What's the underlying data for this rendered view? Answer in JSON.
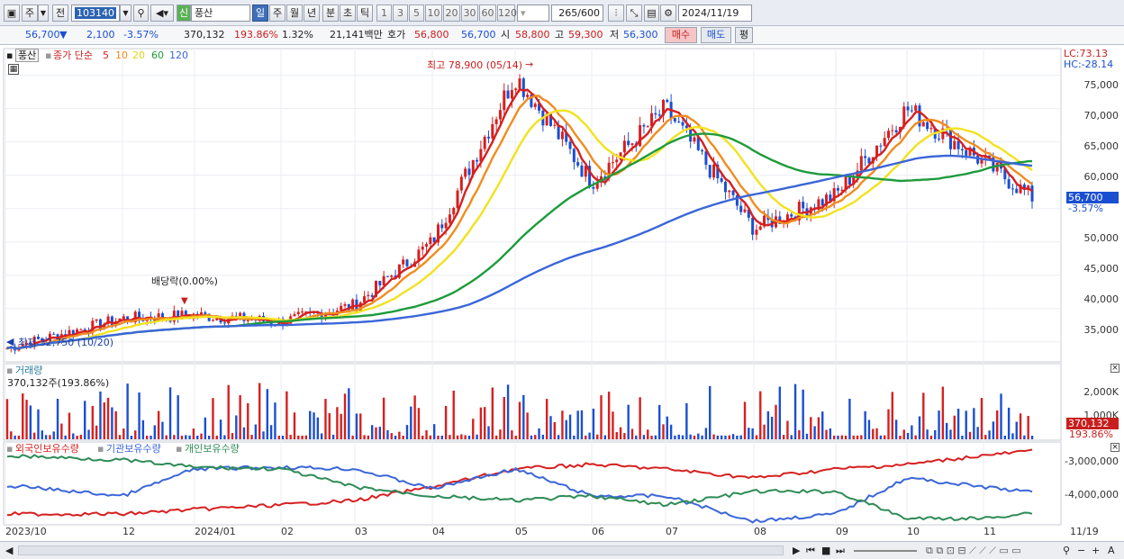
{
  "toolbar": {
    "type_label": "주",
    "prev_label": "전",
    "code": "103140",
    "name": "풍산",
    "new_label": "신",
    "periods": [
      "일",
      "주",
      "월",
      "년",
      "분",
      "초",
      "틱"
    ],
    "selected_period": "일",
    "numbers": [
      "1",
      "3",
      "5",
      "10",
      "20",
      "30",
      "60",
      "120"
    ],
    "count": "265",
    "count_total": "/600",
    "date": "2024/11/19"
  },
  "quote": {
    "price": "56,700",
    "change": "2,100",
    "rate": "-3.57%",
    "volume": "370,132",
    "volume_rate": "193.86%",
    "turnover": "1.32%",
    "amount": "21,141백만",
    "ask_label": "호가",
    "ask1": "56,800",
    "ask2": "56,700",
    "open_label": "시",
    "open": "58,800",
    "high_label": "고",
    "high": "59,300",
    "low_label": "저",
    "low": "56,300",
    "buy": "매수",
    "sell": "매도",
    "avg": "평"
  },
  "price_panel": {
    "stock": "풍산",
    "ma_title": "종가 단순",
    "ma_periods": [
      "5",
      "10",
      "20",
      "60",
      "120"
    ],
    "ma_colors": [
      "#d62020",
      "#f08c1e",
      "#f2e21e",
      "#1e9b3c",
      "#3a66d8"
    ],
    "high_note": "최고 78,900 (05/14)",
    "low_note": "최저 32,750 (10/20)",
    "dividend_note": "배당락(0.00%)",
    "lc": "LC:73.13",
    "hc": "HC:-28.14",
    "last_price": "56,700",
    "last_rate": "-3.57%",
    "y_ticks": [
      "75,000",
      "70,000",
      "65,000",
      "60,000",
      "55,000",
      "50,000",
      "45,000",
      "40,000",
      "35,000"
    ]
  },
  "volume_panel": {
    "title": "거래량",
    "value": "370,132주(193.86%)",
    "y_ticks": [
      "2,000K",
      "1,000K"
    ],
    "last_value": "370,132",
    "last_rate": "193.86%"
  },
  "holder_panel": {
    "legend": [
      "외국인보유수량",
      "기관보유수량",
      "개인보유수량"
    ],
    "colors": [
      "#d62020",
      "#3a66d8",
      "#2e8b57"
    ],
    "y_ticks": [
      "-3,000,000",
      "-4,000,000"
    ]
  },
  "x_labels": [
    "2023/10",
    "12",
    "2024/01",
    "02",
    "03",
    "04",
    "05",
    "06",
    "07",
    "08",
    "09",
    "10",
    "11",
    "11/19"
  ],
  "chart_data": {
    "type": "candlestick",
    "closes_anchor": [
      {
        "x": "2023/10",
        "y": 34000
      },
      {
        "x": "12",
        "y": 38500
      },
      {
        "x": "2024/01",
        "y": 39000
      },
      {
        "x": "02",
        "y": 38000
      },
      {
        "x": "03",
        "y": 40500
      },
      {
        "x": "04",
        "y": 50000
      },
      {
        "x": "05",
        "y": 75000
      },
      {
        "x": "06",
        "y": 59000
      },
      {
        "x": "07",
        "y": 70000
      },
      {
        "x": "08",
        "y": 52000
      },
      {
        "x": "09",
        "y": 57000
      },
      {
        "x": "10",
        "y": 70000
      },
      {
        "x": "11",
        "y": 62000
      },
      {
        "x": "11/19",
        "y": 56700
      }
    ],
    "ylim": [
      32000,
      79000
    ]
  }
}
